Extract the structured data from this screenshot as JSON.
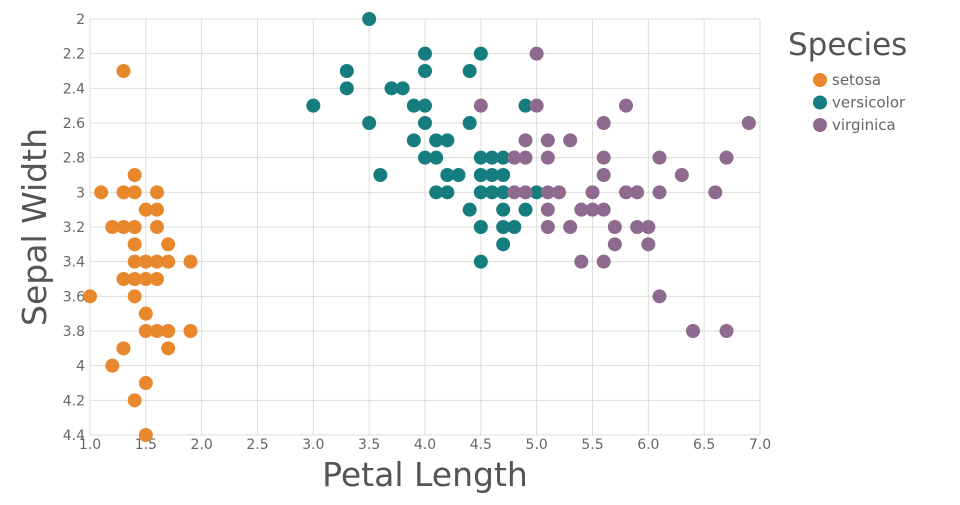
{
  "chart_data": {
    "type": "scatter",
    "xlabel": "Petal Length",
    "ylabel": "Sepal Width",
    "xlim": [
      1.0,
      7.0
    ],
    "ylim": [
      2.0,
      4.4
    ],
    "y_reversed": true,
    "x_ticks": [
      "1.0",
      "1.5",
      "2.0",
      "2.5",
      "3.0",
      "3.5",
      "4.0",
      "4.5",
      "5.0",
      "5.5",
      "6.0",
      "6.5",
      "7.0"
    ],
    "y_ticks": [
      "2",
      "2.2",
      "2.4",
      "2.6",
      "2.8",
      "3",
      "3.2",
      "3.4",
      "3.6",
      "3.8",
      "4",
      "4.2",
      "4.4"
    ],
    "grid": true,
    "legend": {
      "title": "Species",
      "placement": "right"
    },
    "series": [
      {
        "name": "setosa",
        "color": "#e8872c",
        "points": [
          [
            1.3,
            2.3
          ],
          [
            1.1,
            3.0
          ],
          [
            1.3,
            3.0
          ],
          [
            1.4,
            3.0
          ],
          [
            1.6,
            3.0
          ],
          [
            1.4,
            2.9
          ],
          [
            1.2,
            3.2
          ],
          [
            1.3,
            3.2
          ],
          [
            1.4,
            3.2
          ],
          [
            1.6,
            3.2
          ],
          [
            1.5,
            3.1
          ],
          [
            1.6,
            3.1
          ],
          [
            1.4,
            3.3
          ],
          [
            1.7,
            3.3
          ],
          [
            1.4,
            3.4
          ],
          [
            1.5,
            3.4
          ],
          [
            1.6,
            3.4
          ],
          [
            1.7,
            3.4
          ],
          [
            1.9,
            3.4
          ],
          [
            1.3,
            3.5
          ],
          [
            1.4,
            3.5
          ],
          [
            1.5,
            3.5
          ],
          [
            1.6,
            3.5
          ],
          [
            1.0,
            3.6
          ],
          [
            1.4,
            3.6
          ],
          [
            1.5,
            3.7
          ],
          [
            1.5,
            3.8
          ],
          [
            1.6,
            3.8
          ],
          [
            1.7,
            3.8
          ],
          [
            1.9,
            3.8
          ],
          [
            1.3,
            3.9
          ],
          [
            1.7,
            3.9
          ],
          [
            1.2,
            4.0
          ],
          [
            1.5,
            4.1
          ],
          [
            1.4,
            4.2
          ],
          [
            1.5,
            4.4
          ]
        ]
      },
      {
        "name": "versicolor",
        "color": "#167d7f",
        "points": [
          [
            3.5,
            2.0
          ],
          [
            4.0,
            2.2
          ],
          [
            4.5,
            2.2
          ],
          [
            3.3,
            2.3
          ],
          [
            4.0,
            2.3
          ],
          [
            4.4,
            2.3
          ],
          [
            3.3,
            2.4
          ],
          [
            3.7,
            2.4
          ],
          [
            3.8,
            2.4
          ],
          [
            3.0,
            2.5
          ],
          [
            3.9,
            2.5
          ],
          [
            4.0,
            2.5
          ],
          [
            4.9,
            2.5
          ],
          [
            3.5,
            2.6
          ],
          [
            4.0,
            2.6
          ],
          [
            4.4,
            2.6
          ],
          [
            3.9,
            2.7
          ],
          [
            4.1,
            2.7
          ],
          [
            4.2,
            2.7
          ],
          [
            4.0,
            2.8
          ],
          [
            4.1,
            2.8
          ],
          [
            4.5,
            2.8
          ],
          [
            4.6,
            2.8
          ],
          [
            4.7,
            2.8
          ],
          [
            4.8,
            2.8
          ],
          [
            3.6,
            2.9
          ],
          [
            4.2,
            2.9
          ],
          [
            4.3,
            2.9
          ],
          [
            4.5,
            2.9
          ],
          [
            4.6,
            2.9
          ],
          [
            4.7,
            2.9
          ],
          [
            4.1,
            3.0
          ],
          [
            4.2,
            3.0
          ],
          [
            4.5,
            3.0
          ],
          [
            4.6,
            3.0
          ],
          [
            4.7,
            3.0
          ],
          [
            5.0,
            3.0
          ],
          [
            4.4,
            3.1
          ],
          [
            4.7,
            3.1
          ],
          [
            4.9,
            3.1
          ],
          [
            4.5,
            3.2
          ],
          [
            4.7,
            3.2
          ],
          [
            4.8,
            3.2
          ],
          [
            4.7,
            3.3
          ],
          [
            4.5,
            3.4
          ]
        ]
      },
      {
        "name": "virginica",
        "color": "#8e6a8e",
        "points": [
          [
            5.0,
            2.2
          ],
          [
            4.5,
            2.5
          ],
          [
            5.0,
            2.5
          ],
          [
            5.8,
            2.5
          ],
          [
            5.6,
            2.6
          ],
          [
            6.9,
            2.6
          ],
          [
            4.9,
            2.7
          ],
          [
            5.1,
            2.7
          ],
          [
            5.3,
            2.7
          ],
          [
            4.8,
            2.8
          ],
          [
            4.9,
            2.8
          ],
          [
            5.1,
            2.8
          ],
          [
            5.6,
            2.8
          ],
          [
            6.1,
            2.8
          ],
          [
            6.7,
            2.8
          ],
          [
            5.6,
            2.9
          ],
          [
            6.3,
            2.9
          ],
          [
            4.8,
            3.0
          ],
          [
            4.9,
            3.0
          ],
          [
            5.1,
            3.0
          ],
          [
            5.2,
            3.0
          ],
          [
            5.5,
            3.0
          ],
          [
            5.8,
            3.0
          ],
          [
            5.9,
            3.0
          ],
          [
            6.1,
            3.0
          ],
          [
            6.6,
            3.0
          ],
          [
            5.1,
            3.1
          ],
          [
            5.4,
            3.1
          ],
          [
            5.5,
            3.1
          ],
          [
            5.6,
            3.1
          ],
          [
            5.1,
            3.2
          ],
          [
            5.3,
            3.2
          ],
          [
            5.7,
            3.2
          ],
          [
            5.9,
            3.2
          ],
          [
            6.0,
            3.2
          ],
          [
            5.7,
            3.3
          ],
          [
            6.0,
            3.3
          ],
          [
            5.4,
            3.4
          ],
          [
            5.6,
            3.4
          ],
          [
            6.1,
            3.6
          ],
          [
            6.4,
            3.8
          ],
          [
            6.7,
            3.8
          ]
        ]
      }
    ]
  }
}
